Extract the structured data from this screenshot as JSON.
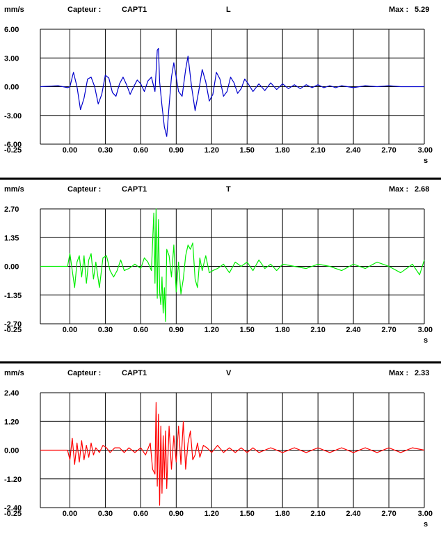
{
  "chart_data": [
    {
      "type": "line",
      "unit": "mm/s",
      "sensor_label": "Capteur :",
      "sensor": "CAPT1",
      "axis": "L",
      "max_label": "Max :",
      "max": "5.29",
      "xunit": "s",
      "color": "#0000cc",
      "xlim": [
        -0.25,
        3.0
      ],
      "ylim": [
        -6.0,
        6.0
      ],
      "yticks": [
        "6.00",
        "3.00",
        "0.00",
        "-3.00",
        "-6.00"
      ],
      "xticks": [
        "-0.25",
        "0.00",
        "0.30",
        "0.60",
        "0.90",
        "1.20",
        "1.50",
        "1.80",
        "2.10",
        "2.40",
        "2.70",
        "3.00"
      ],
      "grid": true,
      "x": [
        -0.25,
        -0.1,
        -0.02,
        0.0,
        0.03,
        0.06,
        0.09,
        0.12,
        0.15,
        0.18,
        0.21,
        0.24,
        0.27,
        0.3,
        0.33,
        0.36,
        0.39,
        0.42,
        0.45,
        0.48,
        0.51,
        0.54,
        0.57,
        0.6,
        0.63,
        0.66,
        0.69,
        0.72,
        0.74,
        0.75,
        0.76,
        0.78,
        0.8,
        0.82,
        0.84,
        0.86,
        0.88,
        0.9,
        0.92,
        0.95,
        0.98,
        1.0,
        1.03,
        1.06,
        1.09,
        1.12,
        1.15,
        1.18,
        1.21,
        1.24,
        1.27,
        1.3,
        1.33,
        1.36,
        1.39,
        1.42,
        1.45,
        1.48,
        1.51,
        1.55,
        1.6,
        1.65,
        1.7,
        1.75,
        1.8,
        1.85,
        1.9,
        1.95,
        2.0,
        2.05,
        2.1,
        2.15,
        2.2,
        2.25,
        2.3,
        2.4,
        2.5,
        2.6,
        2.7,
        2.8,
        2.9,
        3.0
      ],
      "y": [
        0.0,
        0.1,
        -0.1,
        0.0,
        1.5,
        0.0,
        -2.4,
        -1.2,
        0.8,
        1.0,
        0.0,
        -1.8,
        -0.8,
        1.2,
        0.9,
        -0.6,
        -1.0,
        0.3,
        1.0,
        0.2,
        -0.8,
        0.0,
        0.7,
        0.3,
        -0.5,
        0.6,
        1.0,
        -0.5,
        3.8,
        4.0,
        0.5,
        -2.0,
        -4.2,
        -5.2,
        -2.0,
        1.0,
        2.5,
        1.0,
        -0.5,
        -1.0,
        1.8,
        3.2,
        0.0,
        -2.5,
        -0.5,
        1.8,
        0.5,
        -1.5,
        -0.8,
        1.5,
        0.8,
        -1.0,
        -0.5,
        1.0,
        0.4,
        -0.7,
        -0.2,
        0.8,
        0.3,
        -0.5,
        0.3,
        -0.4,
        0.4,
        -0.3,
        0.3,
        -0.2,
        0.2,
        -0.2,
        0.2,
        -0.1,
        0.2,
        -0.1,
        0.1,
        -0.1,
        0.1,
        -0.1,
        0.1,
        0.0,
        0.1,
        0.0,
        0.0,
        0.0
      ]
    },
    {
      "type": "line",
      "unit": "mm/s",
      "sensor_label": "Capteur :",
      "sensor": "CAPT1",
      "axis": "T",
      "max_label": "Max :",
      "max": "2.68",
      "xunit": "s",
      "color": "#00ee00",
      "xlim": [
        -0.25,
        3.0
      ],
      "ylim": [
        -2.7,
        2.7
      ],
      "yticks": [
        "2.70",
        "1.35",
        "0.00",
        "-1.35",
        "-2.70"
      ],
      "xticks": [
        "-0.25",
        "0.00",
        "0.30",
        "0.60",
        "0.90",
        "1.20",
        "1.50",
        "1.80",
        "2.10",
        "2.40",
        "2.70",
        "3.00"
      ],
      "grid": true,
      "x": [
        -0.25,
        -0.05,
        -0.02,
        0.0,
        0.02,
        0.04,
        0.06,
        0.08,
        0.1,
        0.12,
        0.14,
        0.16,
        0.18,
        0.2,
        0.22,
        0.25,
        0.28,
        0.31,
        0.34,
        0.37,
        0.4,
        0.43,
        0.46,
        0.5,
        0.55,
        0.6,
        0.63,
        0.66,
        0.69,
        0.71,
        0.72,
        0.73,
        0.74,
        0.75,
        0.76,
        0.77,
        0.78,
        0.79,
        0.8,
        0.81,
        0.82,
        0.84,
        0.86,
        0.88,
        0.9,
        0.92,
        0.94,
        0.96,
        0.98,
        1.0,
        1.02,
        1.04,
        1.06,
        1.08,
        1.1,
        1.12,
        1.15,
        1.18,
        1.21,
        1.25,
        1.3,
        1.35,
        1.4,
        1.45,
        1.5,
        1.55,
        1.6,
        1.65,
        1.7,
        1.75,
        1.8,
        1.9,
        2.0,
        2.1,
        2.2,
        2.3,
        2.4,
        2.5,
        2.6,
        2.7,
        2.8,
        2.9,
        2.96,
        3.0
      ],
      "y": [
        0.0,
        0.0,
        0.0,
        0.6,
        -0.2,
        -1.0,
        0.2,
        0.5,
        -0.5,
        0.5,
        -0.8,
        0.3,
        0.6,
        -0.6,
        0.2,
        -1.0,
        0.4,
        0.5,
        -0.2,
        -0.5,
        -0.2,
        0.3,
        -0.2,
        -0.1,
        0.1,
        -0.1,
        0.4,
        0.2,
        -0.2,
        2.5,
        -0.8,
        2.7,
        -1.5,
        2.2,
        -1.2,
        -1.8,
        -0.5,
        -2.2,
        -1.0,
        -2.6,
        0.8,
        0.5,
        -0.5,
        1.0,
        -1.2,
        0.2,
        -1.3,
        -0.6,
        0.5,
        1.0,
        0.8,
        1.1,
        -0.6,
        -1.0,
        0.4,
        -0.2,
        0.5,
        -0.3,
        -0.2,
        -0.1,
        0.1,
        -0.3,
        0.2,
        0.0,
        0.2,
        -0.2,
        0.3,
        -0.1,
        0.1,
        -0.2,
        0.1,
        0.0,
        -0.1,
        0.1,
        0.0,
        -0.2,
        0.1,
        -0.1,
        0.2,
        0.0,
        -0.3,
        0.1,
        -0.4,
        0.3
      ]
    },
    {
      "type": "line",
      "unit": "mm/s",
      "sensor_label": "Capteur :",
      "sensor": "CAPT1",
      "axis": "V",
      "max_label": "Max :",
      "max": "2.33",
      "xunit": "s",
      "color": "#ff0000",
      "xlim": [
        -0.25,
        3.0
      ],
      "ylim": [
        -2.4,
        2.4
      ],
      "yticks": [
        "2.40",
        "1.20",
        "0.00",
        "-1.20",
        "-2.40"
      ],
      "xticks": [
        "-0.25",
        "0.00",
        "0.30",
        "0.60",
        "0.90",
        "1.20",
        "1.50",
        "1.80",
        "2.10",
        "2.40",
        "2.70",
        "3.00"
      ],
      "grid": true,
      "x": [
        -0.25,
        -0.02,
        0.0,
        0.02,
        0.04,
        0.06,
        0.08,
        0.1,
        0.12,
        0.14,
        0.16,
        0.18,
        0.2,
        0.22,
        0.25,
        0.28,
        0.31,
        0.34,
        0.38,
        0.42,
        0.46,
        0.5,
        0.55,
        0.6,
        0.64,
        0.68,
        0.7,
        0.72,
        0.73,
        0.74,
        0.75,
        0.76,
        0.77,
        0.78,
        0.79,
        0.8,
        0.81,
        0.82,
        0.84,
        0.86,
        0.88,
        0.9,
        0.92,
        0.94,
        0.96,
        0.98,
        1.0,
        1.02,
        1.04,
        1.06,
        1.08,
        1.1,
        1.13,
        1.16,
        1.2,
        1.25,
        1.3,
        1.35,
        1.4,
        1.45,
        1.5,
        1.55,
        1.6,
        1.7,
        1.8,
        1.9,
        2.0,
        2.1,
        2.2,
        2.3,
        2.4,
        2.5,
        2.6,
        2.7,
        2.8,
        2.9,
        3.0
      ],
      "y": [
        0.0,
        0.0,
        -0.4,
        0.5,
        -0.6,
        0.3,
        -0.5,
        0.4,
        -0.4,
        0.2,
        -0.3,
        0.3,
        -0.2,
        0.1,
        -0.1,
        0.2,
        0.1,
        -0.1,
        0.1,
        0.1,
        -0.1,
        0.1,
        -0.1,
        0.1,
        -0.2,
        0.3,
        -0.8,
        -1.0,
        2.0,
        -1.5,
        1.5,
        -2.3,
        1.0,
        -1.8,
        0.6,
        -1.2,
        0.8,
        -1.6,
        1.0,
        -0.8,
        0.6,
        -0.5,
        1.0,
        -0.6,
        1.2,
        -0.8,
        0.3,
        0.8,
        -0.4,
        -0.2,
        0.3,
        -0.3,
        0.2,
        0.1,
        -0.1,
        0.2,
        -0.1,
        0.1,
        -0.1,
        0.1,
        -0.1,
        0.1,
        -0.1,
        0.1,
        -0.1,
        0.1,
        -0.1,
        0.1,
        -0.1,
        0.1,
        -0.1,
        0.1,
        -0.1,
        0.1,
        -0.1,
        0.1,
        0.0
      ]
    }
  ]
}
